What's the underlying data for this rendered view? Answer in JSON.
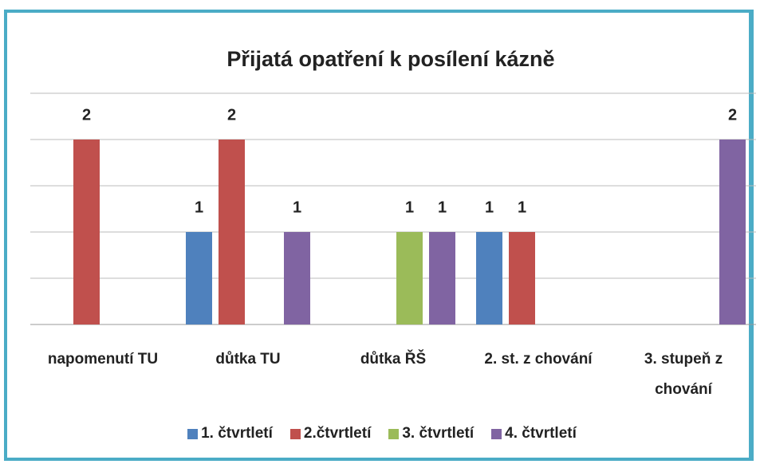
{
  "chart_data": {
    "type": "bar",
    "title": "Přijatá  opatření k posílení kázně",
    "categories": [
      "napomenutí TU",
      "důtka TU",
      "důtka ŘŠ",
      "2. st. z chování",
      "3. stupeň z chování"
    ],
    "series": [
      {
        "name": "1. čtvrtletí",
        "color": "#4f81bd",
        "values": [
          null,
          1,
          null,
          1,
          null
        ]
      },
      {
        "name": "2.čtvrtletí",
        "color": "#c0504d",
        "values": [
          2,
          2,
          null,
          1,
          null
        ]
      },
      {
        "name": "3. čtvrtletí",
        "color": "#9bbb59",
        "values": [
          null,
          null,
          1,
          null,
          null
        ]
      },
      {
        "name": "4. čtvrtletí",
        "color": "#8064a2",
        "values": [
          null,
          1,
          1,
          null,
          2
        ]
      }
    ],
    "ylim": [
      0,
      2.5
    ],
    "yticks": [
      0,
      0.5,
      1,
      1.5,
      2,
      2.5
    ],
    "grid": true,
    "legend": "bottom"
  }
}
